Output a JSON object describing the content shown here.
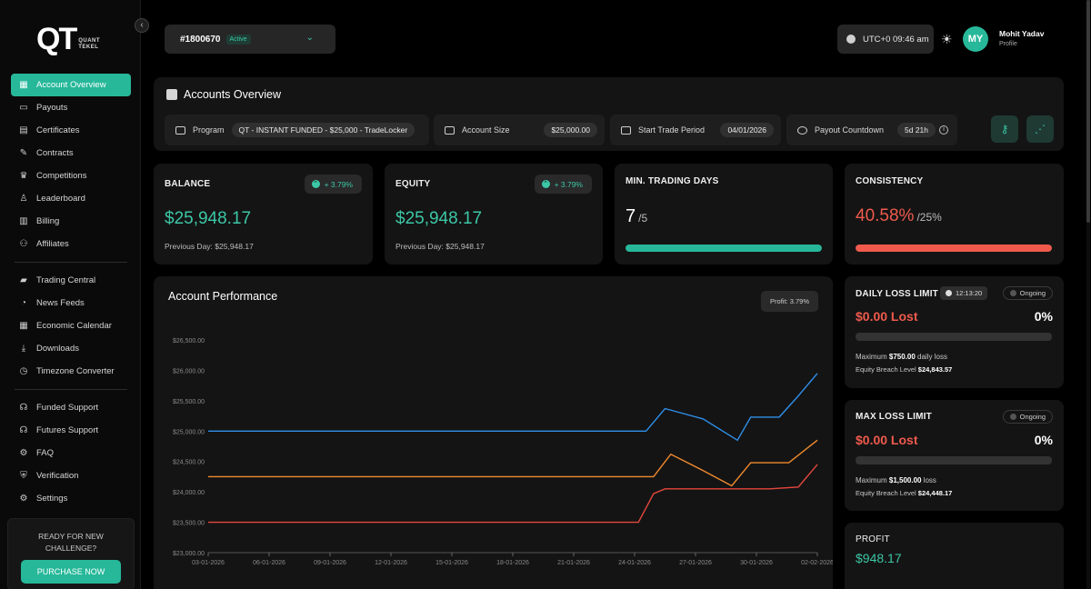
{
  "brand": {
    "logo": "QT",
    "sub_line1": "QUANT",
    "sub_line2": "TEKEL",
    "accent": "#27b89a"
  },
  "sidebar": {
    "items": [
      {
        "label": "Account Overview",
        "icon": "grid-icon",
        "active": true
      },
      {
        "label": "Payouts",
        "icon": "wallet-icon"
      },
      {
        "label": "Certificates",
        "icon": "certificate-icon"
      },
      {
        "label": "Contracts",
        "icon": "contract-icon"
      },
      {
        "label": "Competitions",
        "icon": "trophy-icon"
      },
      {
        "label": "Leaderboard",
        "icon": "medal-icon"
      },
      {
        "label": "Billing",
        "icon": "receipt-icon"
      },
      {
        "label": "Affiliates",
        "icon": "users-icon"
      }
    ],
    "items2": [
      {
        "label": "Trading Central",
        "icon": "chart-icon"
      },
      {
        "label": "News Feeds",
        "icon": "rss-icon"
      },
      {
        "label": "Economic Calendar",
        "icon": "calendar-icon"
      },
      {
        "label": "Downloads",
        "icon": "download-icon"
      },
      {
        "label": "Timezone Converter",
        "icon": "timezone-icon"
      }
    ],
    "items3": [
      {
        "label": "Funded Support",
        "icon": "headset-icon"
      },
      {
        "label": "Futures Support",
        "icon": "headset-icon"
      },
      {
        "label": "FAQ",
        "icon": "faq-icon"
      },
      {
        "label": "Verification",
        "icon": "shield-icon"
      },
      {
        "label": "Settings",
        "icon": "gear-icon"
      }
    ],
    "promo": {
      "line1": "READY FOR NEW",
      "line2": "CHALLENGE?",
      "button": "PURCHASE NOW"
    }
  },
  "topbar": {
    "account_id": "#1800670",
    "account_status": "Active",
    "time": "UTC+0 09:46 am",
    "user_initials": "MY",
    "user_name": "Mohit Yadav",
    "user_sub": "Profile"
  },
  "overview": {
    "title": "Accounts Overview",
    "program_label": "Program",
    "program_value": "QT - INSTANT FUNDED - $25,000 - TradeLocker",
    "size_label": "Account Size",
    "size_value": "$25,000.00",
    "start_label": "Start Trade Period",
    "start_value": "04/01/2026",
    "payout_label": "Payout Countdown",
    "payout_value": "5d 21h"
  },
  "cards": {
    "balance": {
      "title": "BALANCE",
      "change": "+ 3.79%",
      "value": "$25,948.17",
      "prev": "Previous Day: $25,948.17"
    },
    "equity": {
      "title": "EQUITY",
      "change": "+ 3.79%",
      "value": "$25,948.17",
      "prev": "Previous Day: $25,948.17"
    },
    "days": {
      "title": "MIN. TRADING DAYS",
      "value": "7",
      "total": "/5",
      "progress": 1.0,
      "color": "#27b89a"
    },
    "consistency": {
      "title": "CONSISTENCY",
      "value": "40.58%",
      "total": "/25%",
      "progress": 1.0,
      "color": "#ef5a4c"
    }
  },
  "daily_loss": {
    "title": "DAILY LOSS LIMIT",
    "timer": "12:13:20",
    "status": "Ongoing",
    "value": "$0.00 Lost",
    "pct": "0%",
    "max_prefix": "Maximum ",
    "max_amount": "$750.00",
    "max_suffix": " daily loss",
    "breach_prefix": "Equity Breach Level ",
    "breach_amount": "$24,843.57"
  },
  "max_loss": {
    "title": "MAX LOSS LIMIT",
    "status": "Ongoing",
    "value": "$0.00 Lost",
    "pct": "0%",
    "max_prefix": "Maximum ",
    "max_amount": "$1,500.00",
    "max_suffix": " loss",
    "breach_prefix": "Equity Breach Level ",
    "breach_amount": "$24,448.17"
  },
  "profit": {
    "title": "PROFIT",
    "value": "$948.17"
  },
  "performance": {
    "title": "Account Performance",
    "badge": "Profit: 3.79%"
  },
  "chart_data": {
    "type": "line",
    "title": "Account Performance",
    "x": [
      "03-01-2026",
      "06-01-2026",
      "09-01-2026",
      "12-01-2026",
      "15-01-2026",
      "18-01-2026",
      "21-01-2026",
      "24-01-2026",
      "27-01-2026",
      "30-01-2026",
      "02-02-2026"
    ],
    "ylim": [
      23000,
      26500
    ],
    "yticks": [
      "$23,000.00",
      "$23,500.00",
      "$24,000.00",
      "$24,500.00",
      "$25,000.00",
      "$25,500.00",
      "$26,000.00",
      "$26,500.00"
    ],
    "grid": false,
    "series": [
      {
        "color": "#2f8fe8",
        "points": [
          [
            0,
            25000
          ],
          [
            23,
            25000
          ],
          [
            24,
            25370
          ],
          [
            26,
            25200
          ],
          [
            27.8,
            24850
          ],
          [
            28.5,
            25230
          ],
          [
            30,
            25230
          ],
          [
            31,
            25580
          ],
          [
            32,
            25950
          ]
        ]
      },
      {
        "color": "#f08a2e",
        "points": [
          [
            0,
            24250
          ],
          [
            23.4,
            24250
          ],
          [
            24.3,
            24620
          ],
          [
            26,
            24350
          ],
          [
            27.5,
            24100
          ],
          [
            28.5,
            24480
          ],
          [
            30.5,
            24480
          ],
          [
            32,
            24850
          ]
        ]
      },
      {
        "color": "#e5473d",
        "points": [
          [
            0,
            23500
          ],
          [
            22.6,
            23500
          ],
          [
            23.4,
            23970
          ],
          [
            24,
            24050
          ],
          [
            29.5,
            24050
          ],
          [
            31,
            24080
          ],
          [
            32,
            24450
          ]
        ]
      }
    ]
  }
}
